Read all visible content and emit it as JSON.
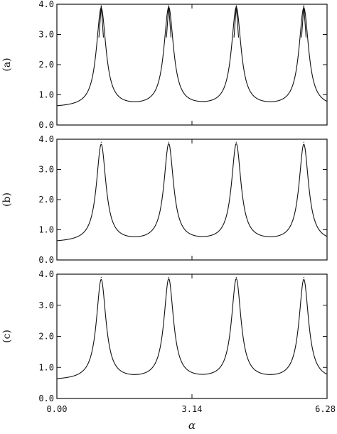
{
  "chart_data": {
    "type": "line",
    "layout": "three vertically stacked panels sharing the x axis",
    "xlabel": "α",
    "xlim": [
      0,
      6.28
    ],
    "x_ticks": [
      "0.00",
      "3.14",
      "6.28"
    ],
    "x_tick_values": [
      0,
      3.14,
      6.28
    ],
    "ylim": [
      0,
      4
    ],
    "y_ticks": [
      "0.0",
      "1.0",
      "2.0",
      "3.0",
      "4.0"
    ],
    "y_tick_values": [
      0,
      1,
      2,
      3,
      4
    ],
    "grid": false,
    "line_color": "#111111",
    "panels": [
      {
        "label": "(a)",
        "baseline": 0.57,
        "peaks": [
          {
            "x": 1.03,
            "y": 3.95
          },
          {
            "x": 2.6,
            "y": 3.95
          },
          {
            "x": 4.17,
            "y": 3.95
          },
          {
            "x": 5.74,
            "y": 3.95
          }
        ],
        "secondary_level": 2.9
      },
      {
        "label": "(b)",
        "baseline": 0.57,
        "peaks": [
          {
            "x": 1.03,
            "y": 3.9
          },
          {
            "x": 2.6,
            "y": 3.9
          },
          {
            "x": 4.17,
            "y": 3.9
          },
          {
            "x": 5.74,
            "y": 3.9
          }
        ]
      },
      {
        "label": "(c)",
        "baseline": 0.57,
        "peaks": [
          {
            "x": 1.03,
            "y": 3.9
          },
          {
            "x": 2.6,
            "y": 3.9
          },
          {
            "x": 4.17,
            "y": 3.9
          },
          {
            "x": 5.74,
            "y": 3.9
          }
        ]
      }
    ]
  }
}
